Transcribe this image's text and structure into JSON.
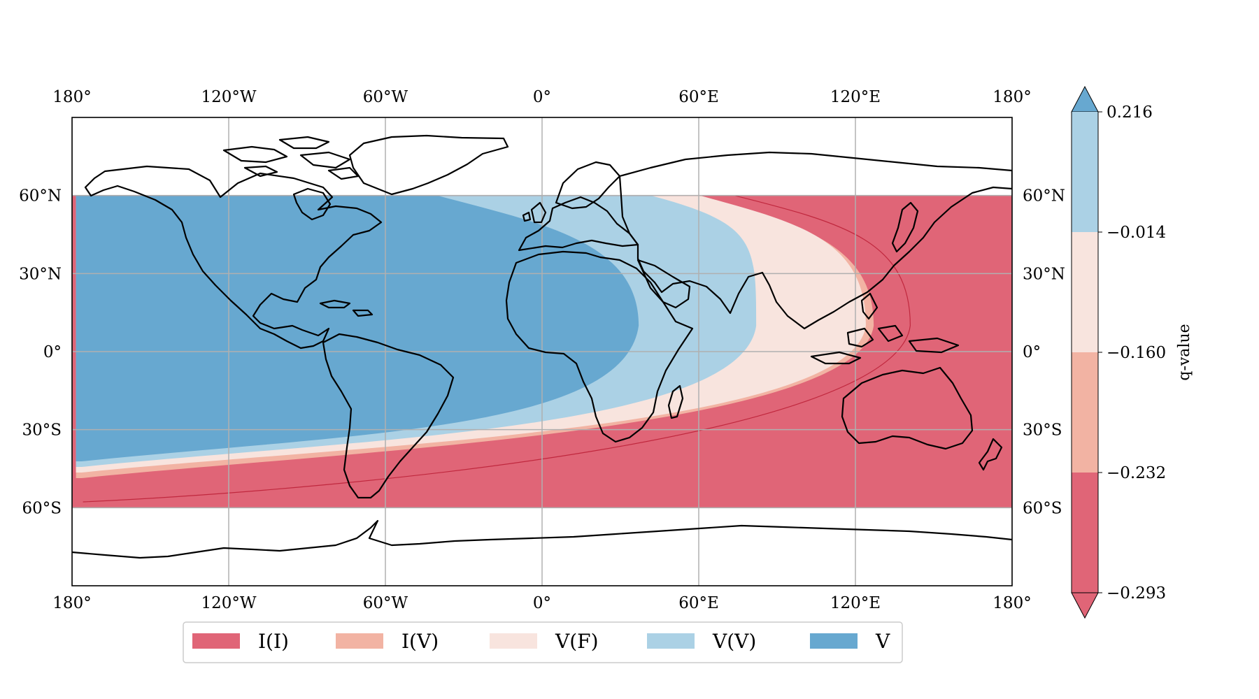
{
  "map": {
    "projection": "PlateCarree",
    "lon_range": [
      -180,
      180
    ],
    "lat_range": [
      -90,
      90
    ],
    "shaded_lat_range": [
      -60,
      60
    ],
    "gridlines": true,
    "coastlines": true,
    "x_tick_labels": [
      "180°",
      "120°W",
      "60°W",
      "0°",
      "60°E",
      "120°E",
      "180°"
    ],
    "y_tick_labels": [
      "60°N",
      "30°N",
      "0°",
      "30°S",
      "60°S"
    ],
    "x_tick_values": [
      -180,
      -120,
      -60,
      0,
      60,
      120,
      180
    ],
    "y_tick_values": [
      60,
      30,
      0,
      -30,
      -60
    ]
  },
  "visibility_zones": {
    "colors": {
      "I(I)": "#e06577",
      "I(V)": "#f2b3a3",
      "V(F)": "#f8e4de",
      "V(V)": "#abd1e5",
      "V": "#67a8d0"
    },
    "apex_lon": [
      141,
      127,
      124,
      82,
      37
    ],
    "apex_lat": 10
  },
  "legend": {
    "items": [
      {
        "label": "I(I)",
        "color": "#e06577"
      },
      {
        "label": "I(V)",
        "color": "#f2b3a3"
      },
      {
        "label": "V(F)",
        "color": "#f8e4de"
      },
      {
        "label": "V(V)",
        "color": "#abd1e5"
      },
      {
        "label": "V",
        "color": "#67a8d0"
      }
    ]
  },
  "colorbar": {
    "label": "q-value",
    "extend": "both",
    "tick_labels": [
      "0.216",
      "−0.014",
      "−0.160",
      "−0.232",
      "−0.293"
    ],
    "bins": [
      {
        "color": "#abd1e5"
      },
      {
        "color": "#f8e4de"
      },
      {
        "color": "#f2b3a3"
      },
      {
        "color": "#e06577"
      }
    ],
    "top_arrow_color": "#67a8d0",
    "bottom_arrow_color": "#e06577"
  }
}
